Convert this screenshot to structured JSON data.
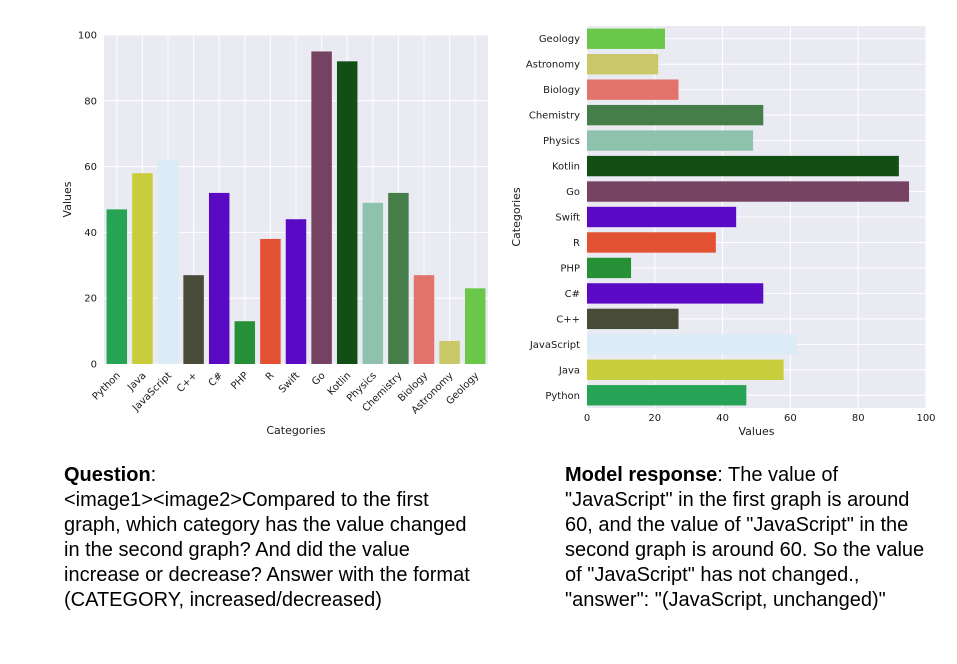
{
  "chart_data": [
    {
      "type": "bar",
      "orientation": "vertical",
      "title": "",
      "xlabel": "Categories",
      "ylabel": "Values",
      "ylim": [
        0,
        100
      ],
      "yticks": [
        0,
        20,
        40,
        60,
        80,
        100
      ],
      "grid": true,
      "categories": [
        "Python",
        "Java",
        "JavaScript",
        "C++",
        "C#",
        "PHP",
        "R",
        "Swift",
        "Go",
        "Kotlin",
        "Physics",
        "Chemistry",
        "Biology",
        "Astronomy",
        "Geology"
      ],
      "values": [
        47,
        58,
        62,
        27,
        52,
        13,
        38,
        44,
        95,
        92,
        49,
        52,
        27,
        7,
        23
      ],
      "colors": [
        "#27a356",
        "#c8cd3b",
        "#dcecf6",
        "#474b38",
        "#5a0ac4",
        "#269036",
        "#e25131",
        "#5a0ac4",
        "#764262",
        "#134e15",
        "#8ec2ad",
        "#467e4a",
        "#e1736c",
        "#c9c869",
        "#6bc74a"
      ]
    },
    {
      "type": "bar",
      "orientation": "horizontal",
      "title": "",
      "xlabel": "Values",
      "ylabel": "Categories",
      "xlim": [
        0,
        100
      ],
      "xticks": [
        0,
        20,
        40,
        60,
        80,
        100
      ],
      "grid": true,
      "categories": [
        "Python",
        "Java",
        "JavaScript",
        "C++",
        "C#",
        "PHP",
        "R",
        "Swift",
        "Go",
        "Kotlin",
        "Physics",
        "Chemistry",
        "Biology",
        "Astronomy",
        "Geology"
      ],
      "values": [
        47,
        58,
        62,
        27,
        52,
        13,
        38,
        44,
        95,
        92,
        49,
        52,
        27,
        21,
        23
      ],
      "colors": [
        "#27a356",
        "#c8cd3b",
        "#dcecf6",
        "#474b38",
        "#5a0ac4",
        "#269036",
        "#e25131",
        "#5a0ac4",
        "#764262",
        "#134e15",
        "#8ec2ad",
        "#467e4a",
        "#e1736c",
        "#c9c869",
        "#6bc74a"
      ]
    }
  ],
  "question": {
    "label": "Question",
    "text": ":\n<image1><image2>Compared to the first graph, which category has the value changed in the second graph? And did the value increase or decrease? Answer with the format (CATEGORY, increased/decreased)"
  },
  "response": {
    "label": "Model response",
    "text": ": The value of \"JavaScript\" in the first graph is around 60, and the value of \"JavaScript\" in the second graph is around 60. So the value of \"JavaScript\" has not changed., \"answer\": \"(JavaScript, unchanged)\""
  },
  "colors": {
    "plot_bg": "#eaeaf2",
    "grid": "#ffffff"
  }
}
